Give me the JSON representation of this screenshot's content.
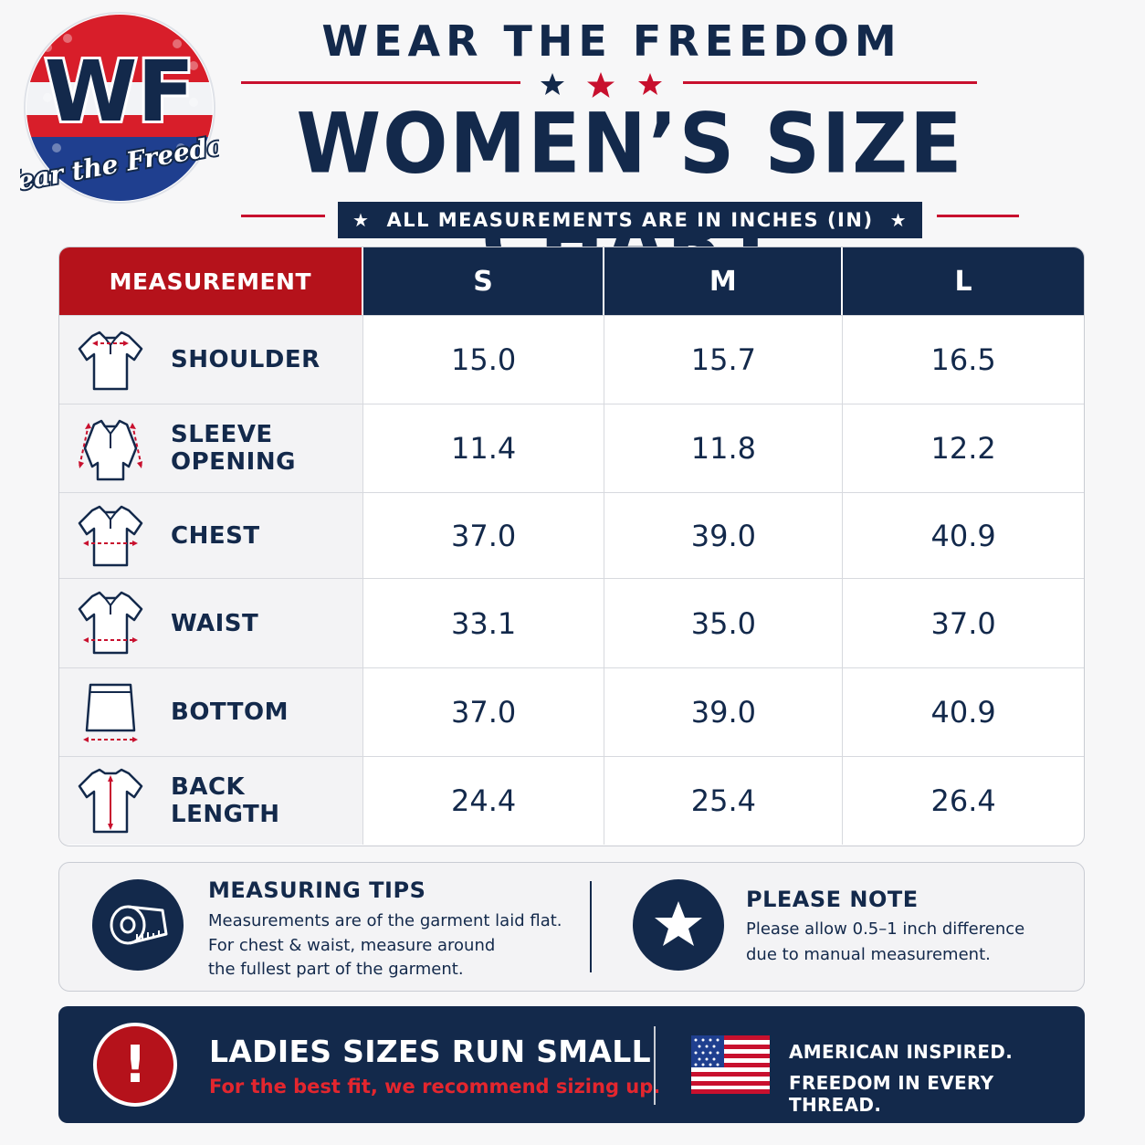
{
  "logo": {
    "monogram": "WF",
    "script_text": "Wear the Freedom"
  },
  "header": {
    "brand": "WEAR THE FREEDOM",
    "title": "WOMEN’S SIZE CHART",
    "subtitle": "ALL MEASUREMENTS ARE IN INCHES (IN)",
    "star_glyph": "★"
  },
  "table": {
    "headers": [
      "MEASUREMENT",
      "S",
      "M",
      "L"
    ],
    "rows": [
      {
        "icon": "polo-shoulder-icon",
        "label": "SHOULDER",
        "values": [
          "15.0",
          "15.7",
          "16.5"
        ]
      },
      {
        "icon": "polo-sleeve-icon",
        "label": "SLEEVE OPENING",
        "values": [
          "11.4",
          "11.8",
          "12.2"
        ]
      },
      {
        "icon": "polo-chest-icon",
        "label": "CHEST",
        "values": [
          "37.0",
          "39.0",
          "40.9"
        ]
      },
      {
        "icon": "polo-waist-icon",
        "label": "WAIST",
        "values": [
          "33.1",
          "35.0",
          "37.0"
        ]
      },
      {
        "icon": "skirt-bottom-icon",
        "label": "BOTTOM",
        "values": [
          "37.0",
          "39.0",
          "40.9"
        ]
      },
      {
        "icon": "polo-back-length-icon",
        "label": "BACK LENGTH",
        "values": [
          "24.4",
          "25.4",
          "26.4"
        ]
      }
    ]
  },
  "tips": {
    "title": "MEASURING TIPS",
    "lines": [
      "Measurements are of the garment laid flat.",
      "For chest & waist, measure around",
      "the fullest part of the garment."
    ]
  },
  "note": {
    "title": "PLEASE NOTE",
    "lines": [
      "Please allow 0.5–1 inch difference",
      "due to manual measurement."
    ]
  },
  "banner": {
    "alert_glyph": "!",
    "headline": "LADIES SIZES RUN SMALL",
    "subline": "For the best fit, we recommend sizing up.",
    "tagline_1": "AMERICAN INSPIRED.",
    "tagline_2": "FREEDOM IN EVERY THREAD."
  },
  "colors": {
    "navy": "#13294b",
    "red": "#b5121b",
    "light": "#f3f3f5"
  }
}
